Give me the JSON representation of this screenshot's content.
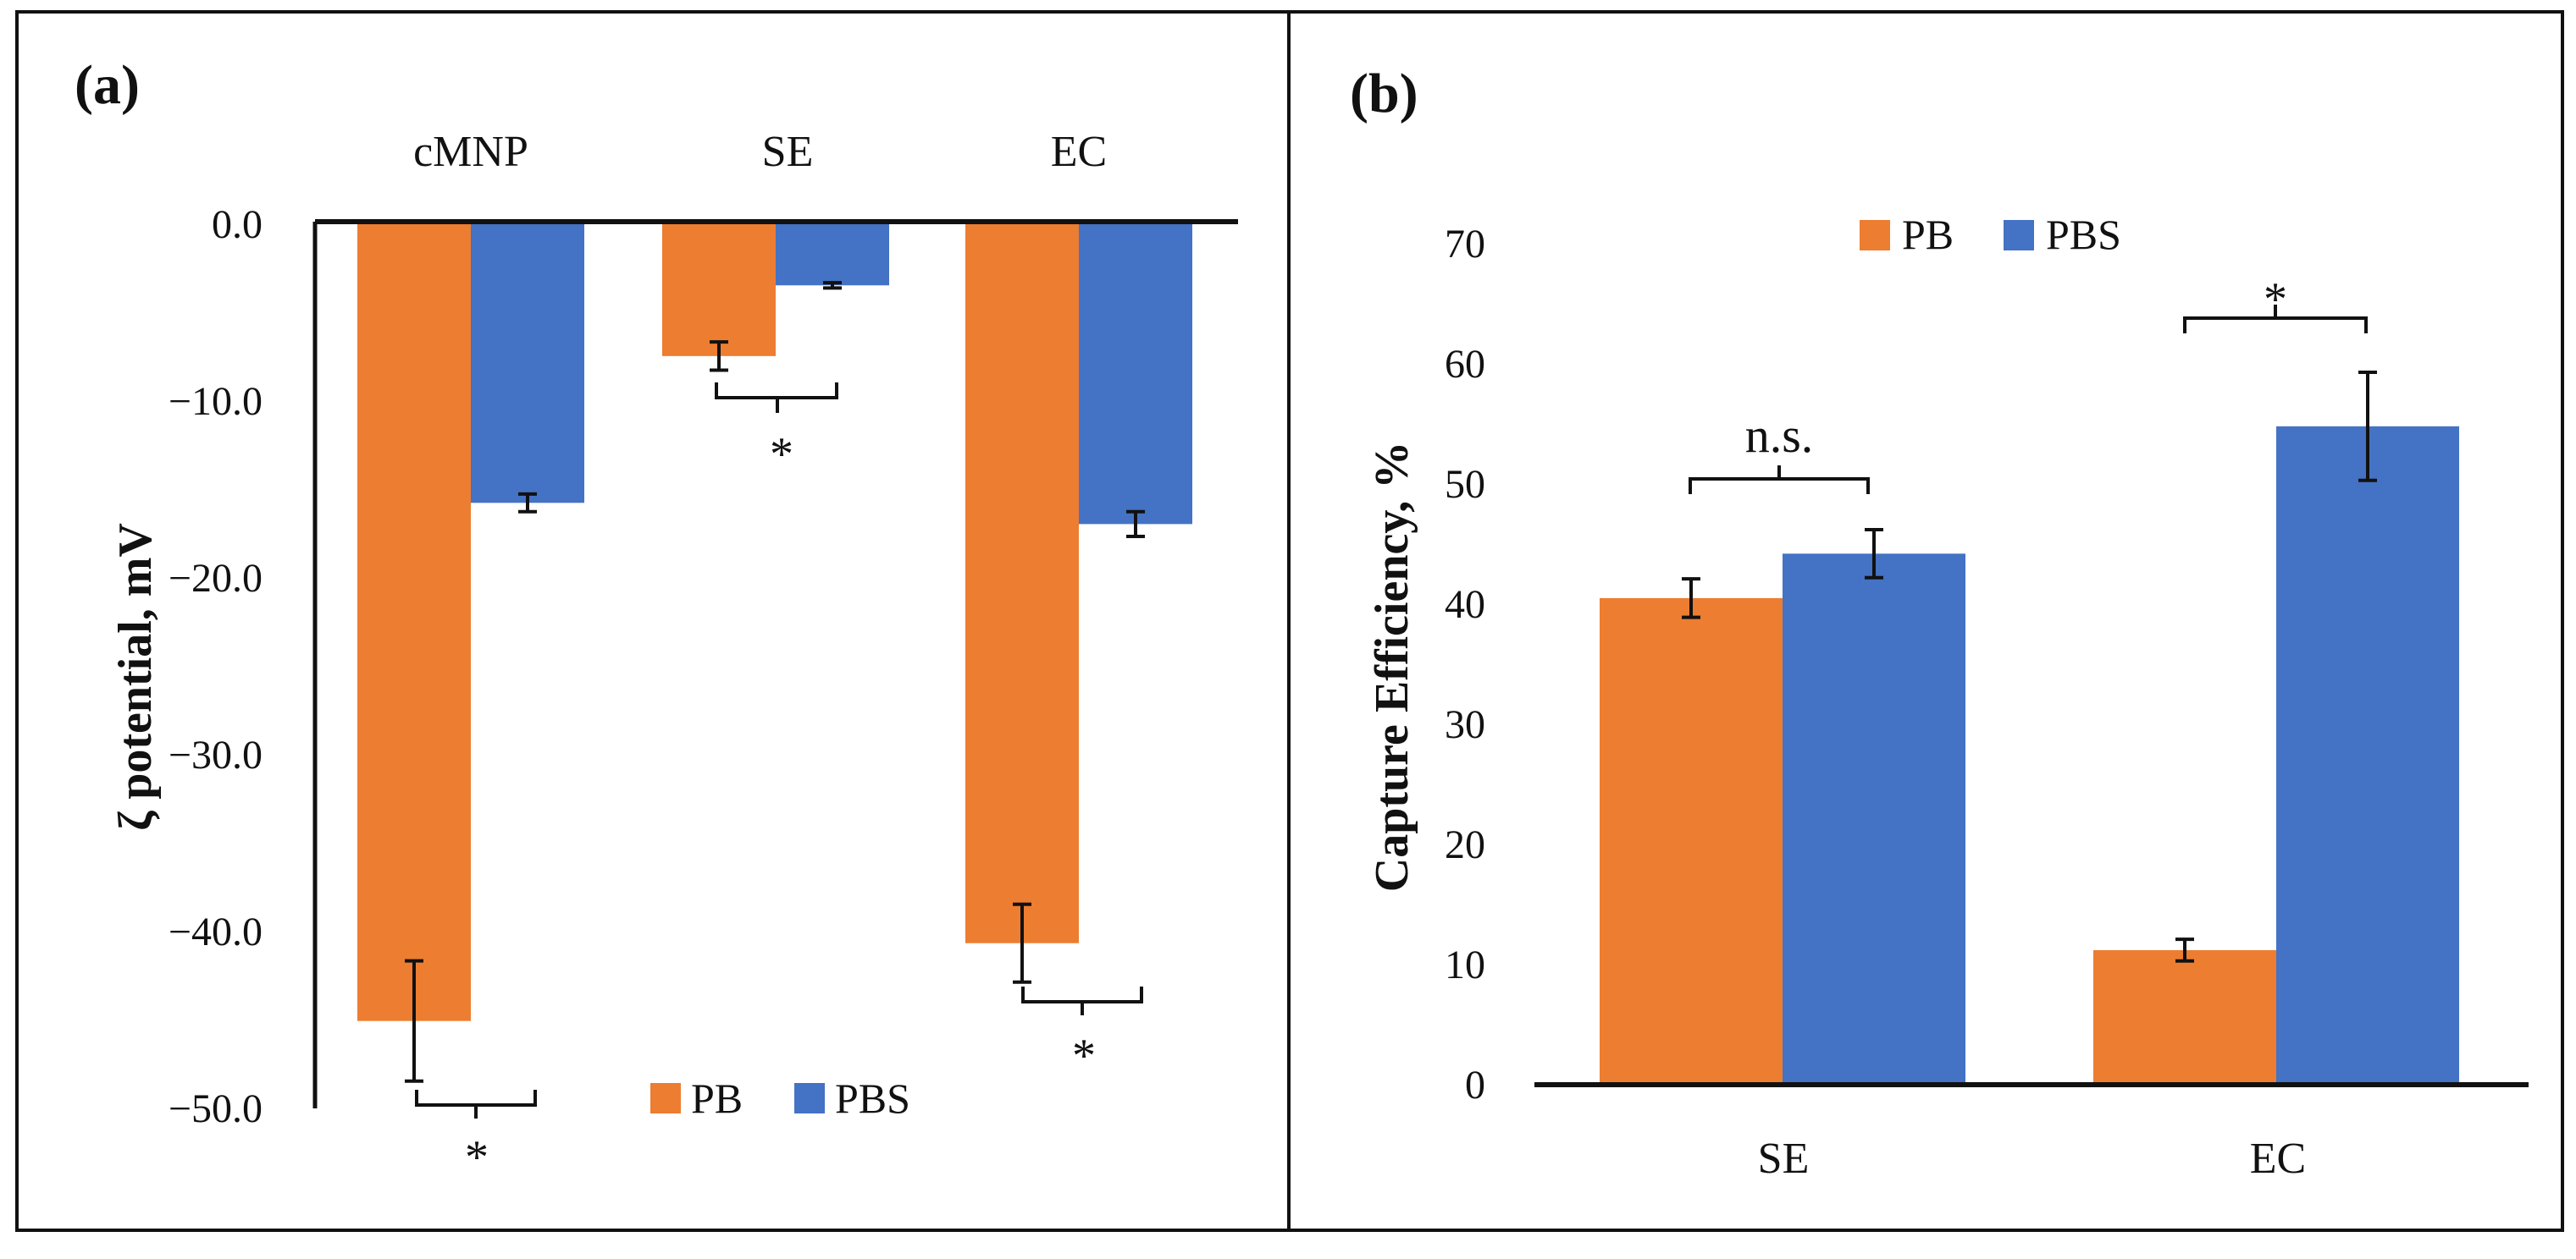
{
  "colors": {
    "pb": "#ED7D31",
    "pbs": "#4472C4",
    "axis": "#111111",
    "border": "#111111"
  },
  "chart_data": [
    {
      "panel_label": "(a)",
      "type": "bar",
      "categories": [
        "cMNP",
        "SE",
        "EC"
      ],
      "series": [
        {
          "name": "PB",
          "values": [
            -45.2,
            -7.6,
            -40.8
          ],
          "errors": [
            3.4,
            0.8,
            2.2
          ]
        },
        {
          "name": "PBS",
          "values": [
            -15.9,
            -3.6,
            -17.1
          ],
          "errors": [
            0.5,
            0.15,
            0.7
          ]
        }
      ],
      "ylabel": "ζ potential, mV",
      "ylim": [
        -50,
        0
      ],
      "yticks": [
        "0.0",
        "−10.0",
        "−20.0",
        "−30.0",
        "−40.0",
        "−50.0"
      ],
      "ytick_values": [
        0,
        -10,
        -20,
        -30,
        -40,
        -50
      ],
      "legend": [
        "PB",
        "PBS"
      ],
      "legend_position": "bottom-center",
      "significance": [
        "*",
        "*",
        "*"
      ]
    },
    {
      "panel_label": "(b)",
      "type": "bar",
      "categories": [
        "SE",
        "EC"
      ],
      "series": [
        {
          "name": "PB",
          "values": [
            40.5,
            11.2
          ],
          "errors": [
            1.6,
            0.9
          ]
        },
        {
          "name": "PBS",
          "values": [
            44.2,
            54.8
          ],
          "errors": [
            2.0,
            4.5
          ]
        }
      ],
      "ylabel": "Capture Efficiency, %",
      "ylim": [
        0,
        70
      ],
      "yticks": [
        "0",
        "10",
        "20",
        "30",
        "40",
        "50",
        "60",
        "70"
      ],
      "ytick_values": [
        0,
        10,
        20,
        30,
        40,
        50,
        60,
        70
      ],
      "legend": [
        "PB",
        "PBS"
      ],
      "legend_position": "top-left",
      "significance": [
        "n.s.",
        "*"
      ]
    }
  ]
}
